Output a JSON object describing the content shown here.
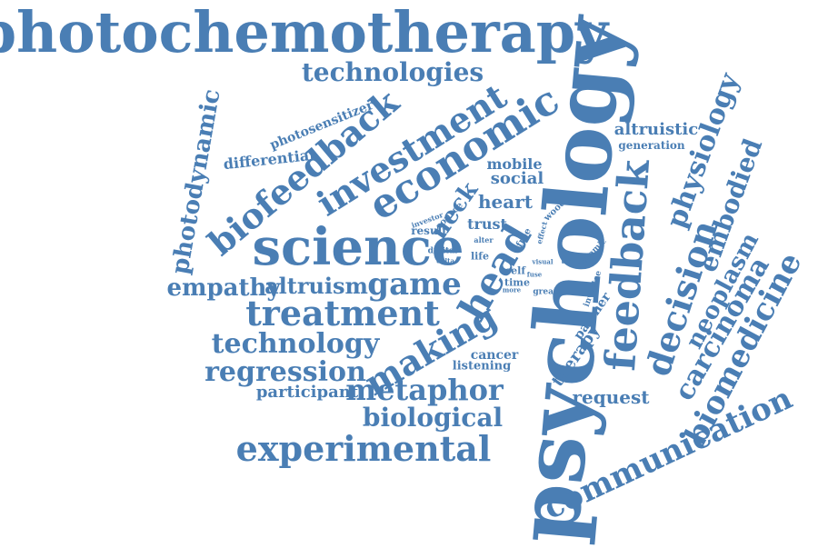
{
  "color": "#4a7eb4",
  "words": [
    "photochemotherapy",
    "psychology",
    "science",
    "feedback",
    "economic",
    "investment",
    "biofeedback",
    "treatment",
    "technologies",
    "experimental",
    "communication",
    "making",
    "head",
    "decision",
    "biomedicine",
    "physiology",
    "embodied",
    "neoplasm",
    "carcinoma",
    "metaphor",
    "regression",
    "technology",
    "biological",
    "game",
    "empathy",
    "altruism",
    "photodynamic",
    "differential",
    "photosensitizer",
    "request",
    "participant",
    "altruistic",
    "generation",
    "mobile",
    "social",
    "heart",
    "neck",
    "trust",
    "wood",
    "result",
    "investor",
    "source",
    "alter",
    "digital",
    "life",
    "free",
    "effect",
    "delta",
    "self",
    "visual",
    "tumour",
    "systemic",
    "fuse",
    "time",
    "more",
    "greater",
    "investee",
    "partner",
    "therapy",
    "cancer",
    "listening"
  ]
}
